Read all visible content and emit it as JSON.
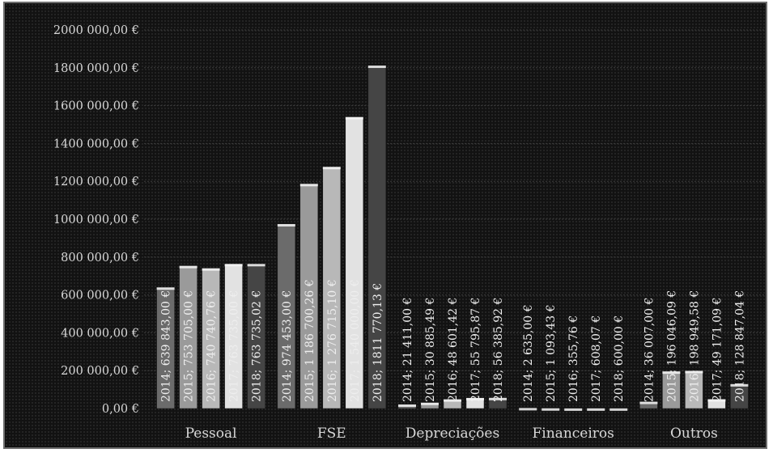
{
  "chart_data": {
    "type": "bar",
    "title": "",
    "xlabel": "",
    "ylabel": "",
    "ylim": [
      0,
      2000000
    ],
    "ytick_step": 200000,
    "yticks": [
      "0,00 €",
      "200 000,00 €",
      "400 000,00 €",
      "600 000,00 €",
      "800 000,00 €",
      "1000 000,00 €",
      "1200 000,00 €",
      "1400 000,00 €",
      "1600 000,00 €",
      "1800 000,00 €",
      "2000 000,00 €"
    ],
    "grid": true,
    "categories": [
      "Pessoal",
      "FSE",
      "Depreciações",
      "Financeiros",
      "Outros"
    ],
    "series": [
      {
        "name": "2014",
        "color": "#6b6b6b",
        "values": [
          639843.0,
          974453.0,
          21411.0,
          2635.0,
          36007.0
        ],
        "labels": [
          "2014; 639 843,00 €",
          "2014; 974 453,00 €",
          "2014; 21 411,00 €",
          "2014; 2 635,00 €",
          "2014; 36 007,00 €"
        ]
      },
      {
        "name": "2015",
        "color": "#9a9a9a",
        "values": [
          753705.0,
          1186700.26,
          30885.49,
          1093.43,
          196046.09
        ],
        "labels": [
          "2015; 753 705,00 €",
          "2015; 1 186 700,26 €",
          "2015; 30 885,49 €",
          "2015; 1 093,43 €",
          "2015; 196 046,09 €"
        ]
      },
      {
        "name": "2016",
        "color": "#b8b8b8",
        "values": [
          740740.76,
          1276715.1,
          48601.42,
          355.76,
          198949.58
        ],
        "labels": [
          "2016; 740 740,76 €",
          "2016; 1 276 715,10 €",
          "2016; 48 601,42 €",
          "2016; 355,76 €",
          "2016; 198 949,58 €"
        ]
      },
      {
        "name": "2017",
        "color": "#e2e2e2",
        "values": [
          763735.0,
          1540000.0,
          55795.87,
          608.07,
          49171.09
        ],
        "labels": [
          "2017; 763 735,00 €",
          "2017; 1 540 000,00 €",
          "2017; 55 795,87 €",
          "2017; 608,07 €",
          "2017; 49 171,09 €"
        ]
      },
      {
        "name": "2018",
        "color": "#454545",
        "values": [
          763735.02,
          1811770.13,
          56385.92,
          600.0,
          128847.04
        ],
        "labels": [
          "2018; 763 735,02 €",
          "2018; 1811 770,13 €",
          "2018; 56 385,92 €",
          "2018; 600,00 €",
          "2018; 128 847,04 €"
        ]
      }
    ]
  }
}
